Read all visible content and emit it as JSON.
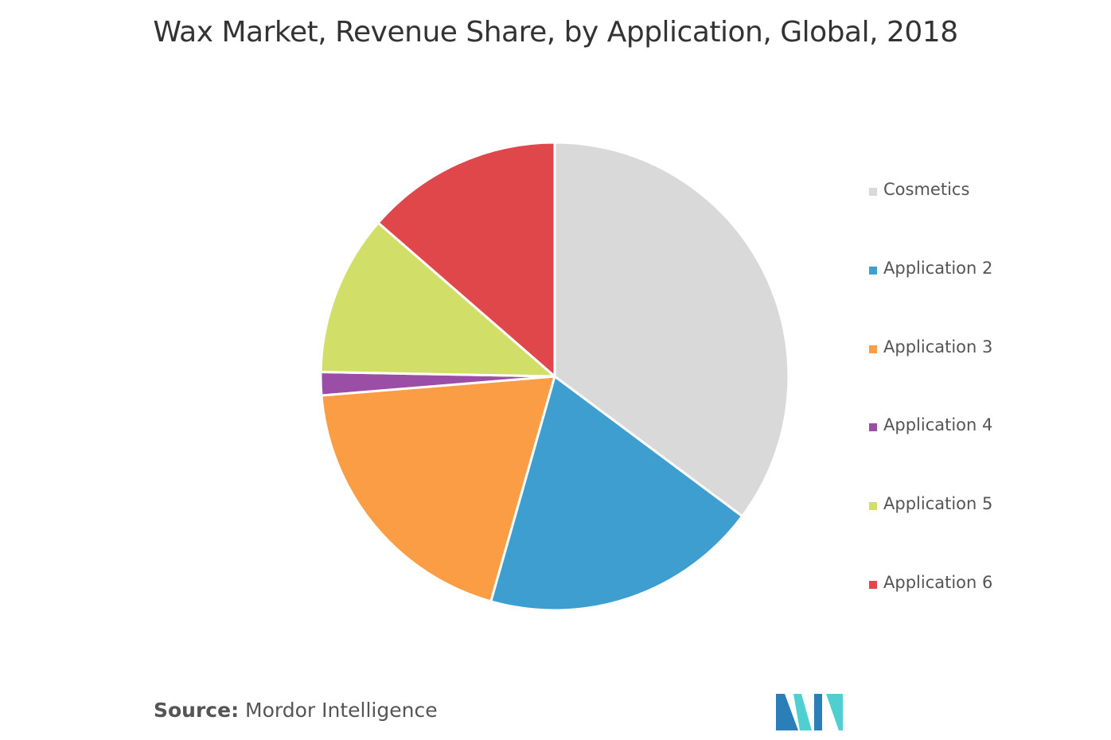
{
  "chart_data": {
    "type": "pie",
    "title": "Wax Market, Revenue Share, by Application, Global, 2018",
    "categories": [
      "Cosmetics",
      "Application 2",
      "Application 3",
      "Application 4",
      "Application 5",
      "Application 6"
    ],
    "values": [
      35.2,
      19.2,
      19.3,
      1.6,
      11.1,
      13.6
    ],
    "colors": [
      "#d9d9d9",
      "#3e9ed0",
      "#fb9d44",
      "#9b4ea5",
      "#d1df69",
      "#df474b"
    ],
    "legend_position": "right",
    "start_angle": "12 o'clock",
    "direction": "clockwise"
  },
  "source": {
    "label": "Source:",
    "text": "Mordor Intelligence"
  },
  "logo": {
    "icon": "mordor-intelligence-logo-icon",
    "colors": [
      "#2a7fb8",
      "#4fcfcf"
    ]
  }
}
